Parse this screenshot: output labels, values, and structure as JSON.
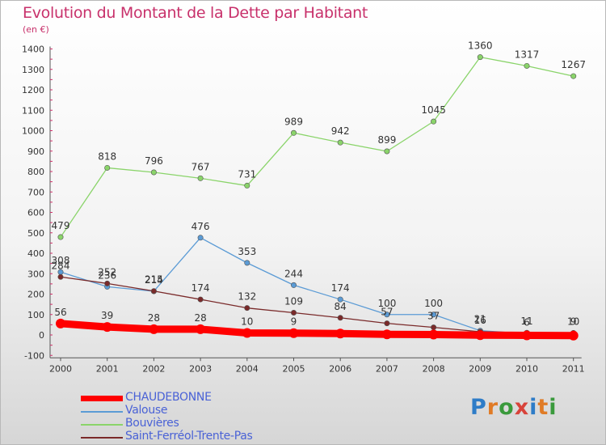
{
  "title": "Evolution du Montant de la Dette par Habitant",
  "subtitle": "(en €)",
  "brand": {
    "letters": [
      "P",
      "r",
      "o",
      "x",
      "i",
      "t",
      "i"
    ],
    "colors": [
      "#2e7cc7",
      "#e07b26",
      "#3a9a3c",
      "#d8433a",
      "#2e7cc7",
      "#e07b26",
      "#3a9a3c"
    ]
  },
  "chart_data": {
    "type": "line",
    "x": [
      "2000",
      "2001",
      "2002",
      "2003",
      "2004",
      "2005",
      "2006",
      "2007",
      "2008",
      "2009",
      "2010",
      "2011"
    ],
    "yticks": [
      -100,
      0,
      100,
      200,
      300,
      400,
      500,
      600,
      700,
      800,
      900,
      1000,
      1100,
      1200,
      1300,
      1400
    ],
    "ylim": [
      -100,
      1400
    ],
    "grid": false,
    "legend_position": "bottom-left",
    "series": [
      {
        "name": "CHAUDEBONNE",
        "color": "#ff0000",
        "line_width": "heavy",
        "values": [
          56,
          39,
          28,
          28,
          10,
          9,
          7,
          3,
          2,
          -1,
          -2,
          -3
        ],
        "labels": [
          "56",
          "39",
          "28",
          "28",
          "10",
          "9",
          "",
          "",
          "",
          "",
          "",
          ""
        ]
      },
      {
        "name": "Valouse",
        "color": "#5b9bd5",
        "line_width": "thin",
        "values": [
          308,
          236,
          214,
          476,
          353,
          244,
          174,
          100,
          100,
          21,
          6,
          9
        ],
        "labels": [
          "308",
          "236",
          "214",
          "476",
          "353",
          "244",
          "174",
          "100",
          "100",
          "21",
          "6",
          "9"
        ]
      },
      {
        "name": "Bouvières",
        "color": "#8ad46a",
        "line_width": "thin",
        "values": [
          479,
          818,
          796,
          767,
          731,
          989,
          942,
          899,
          1045,
          1360,
          1317,
          1267
        ],
        "labels": [
          "479",
          "818",
          "796",
          "767",
          "731",
          "989",
          "942",
          "899",
          "1045",
          "1360",
          "1317",
          "1267"
        ]
      },
      {
        "name": "Saint-Ferréol-Trente-Pas",
        "color": "#7a2a2a",
        "line_width": "thin",
        "values": [
          284,
          252,
          215,
          174,
          132,
          109,
          84,
          57,
          37,
          16,
          11,
          10
        ],
        "labels": [
          "284",
          "252",
          "215",
          "174",
          "132",
          "109",
          "84",
          "57",
          "37",
          "16",
          "11",
          "10"
        ]
      }
    ]
  }
}
